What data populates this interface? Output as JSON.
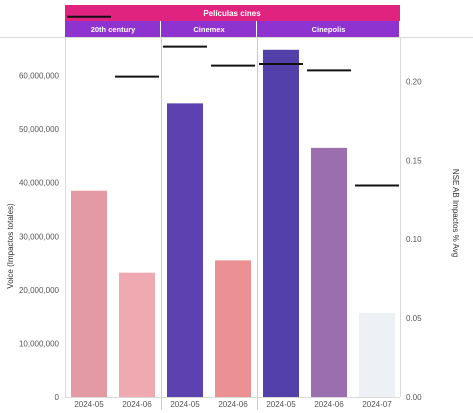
{
  "chart_data": {
    "type": "bar",
    "title": "Películas cines",
    "groups": [
      {
        "name": "20th century",
        "bars": [
          {
            "x": "2024-05",
            "value": 38500000,
            "nse": 0.241
          },
          {
            "x": "2024-06",
            "value": 23200000,
            "nse": 0.203
          }
        ]
      },
      {
        "name": "Cinemex",
        "bars": [
          {
            "x": "2024-05",
            "value": 54800000,
            "nse": 0.222
          },
          {
            "x": "2024-06",
            "value": 25500000,
            "nse": 0.21
          }
        ]
      },
      {
        "name": "Cinepolis",
        "bars": [
          {
            "x": "2024-05",
            "value": 64800000,
            "nse": 0.211
          },
          {
            "x": "2024-06",
            "value": 46500000,
            "nse": 0.207
          },
          {
            "x": "2024-07",
            "value": 15700000,
            "nse": 0.134
          }
        ]
      }
    ],
    "bar_colors": [
      "#e39aa4",
      "#eeaab0",
      "#5c41b1",
      "#eb9194",
      "#5340a8",
      "#9b6faf",
      "#edf1f6"
    ],
    "ylabel": "Voice (Impactos totales)",
    "y2label": "NSE AB Impactos % Avg",
    "yticks": [
      "0",
      "10,000,000",
      "20,000,000",
      "30,000,000",
      "40,000,000",
      "50,000,000",
      "60,000,000"
    ],
    "y2ticks": [
      "0.00",
      "0.05",
      "0.10",
      "0.15",
      "0.20"
    ],
    "ylim": [
      0,
      67000000
    ],
    "y2lim": [
      0,
      0.2275
    ],
    "legend": "none",
    "grid": false
  },
  "colors": {
    "title_band": "#e0237f",
    "group_band": "#8f33d0",
    "reference_line": "#111111"
  }
}
